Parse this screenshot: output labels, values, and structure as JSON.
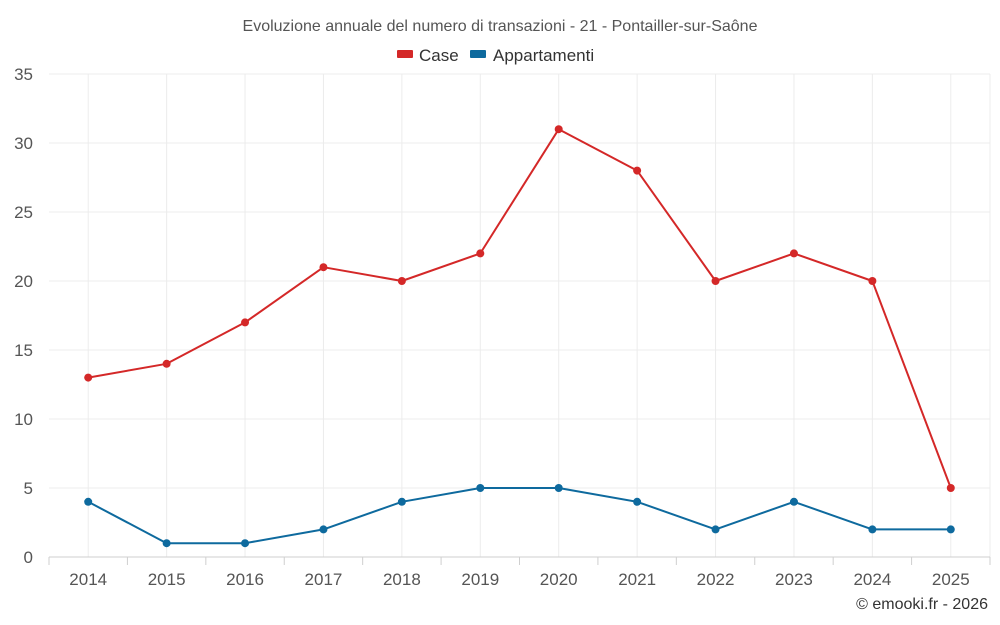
{
  "chart_data": {
    "type": "line",
    "title": "Evoluzione annuale del numero di transazioni - 21 - Pontailler-sur-Saône",
    "categories": [
      "2014",
      "2015",
      "2016",
      "2017",
      "2018",
      "2019",
      "2020",
      "2021",
      "2022",
      "2023",
      "2024",
      "2025"
    ],
    "series": [
      {
        "name": "Case",
        "color": "#d42828",
        "values": [
          13,
          14,
          17,
          21,
          20,
          22,
          31,
          28,
          20,
          22,
          20,
          5
        ]
      },
      {
        "name": "Appartamenti",
        "color": "#0e6a9e",
        "values": [
          4,
          1,
          1,
          2,
          4,
          5,
          5,
          4,
          2,
          4,
          2,
          2
        ]
      }
    ],
    "ylim": [
      0,
      35
    ],
    "yticks": [
      "0",
      "5",
      "10",
      "15",
      "20",
      "25",
      "30",
      "35"
    ],
    "xlabel": "",
    "ylabel": "",
    "grid": true,
    "legend_position": "top-center"
  },
  "credit": "© emooki.fr - 2026"
}
